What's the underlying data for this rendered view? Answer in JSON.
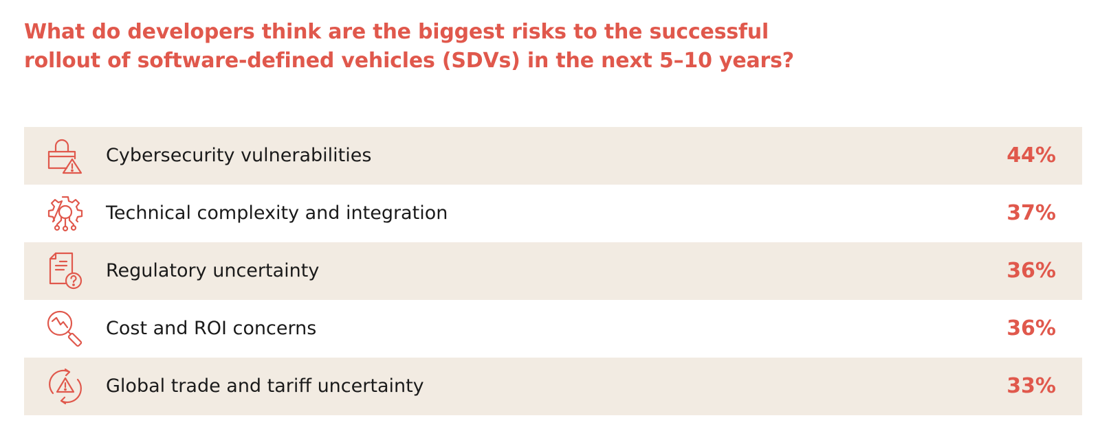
{
  "chart_data": {
    "type": "table",
    "title_lines": [
      "What do developers think are the biggest risks to the successful",
      "rollout of software-defined vehicles (SDVs) in the next 5–10 years?"
    ],
    "categories": [
      "Cybersecurity vulnerabilities",
      "Technical complexity and integration",
      "Regulatory uncertainty",
      "Cost and ROI concerns",
      "Global trade and tariff uncertainty"
    ],
    "values": [
      44,
      37,
      36,
      36,
      33
    ],
    "value_labels": [
      "44%",
      "37%",
      "36%",
      "36%",
      "33%"
    ],
    "icons": [
      "lock-warning-icon",
      "gear-circuit-icon",
      "document-question-icon",
      "magnifier-decline-icon",
      "cycle-warning-icon"
    ]
  },
  "colors": {
    "accent": "#e0584c",
    "row_shade": "#f2ebe2",
    "label_text": "#1a1a1a",
    "background": "#ffffff"
  }
}
